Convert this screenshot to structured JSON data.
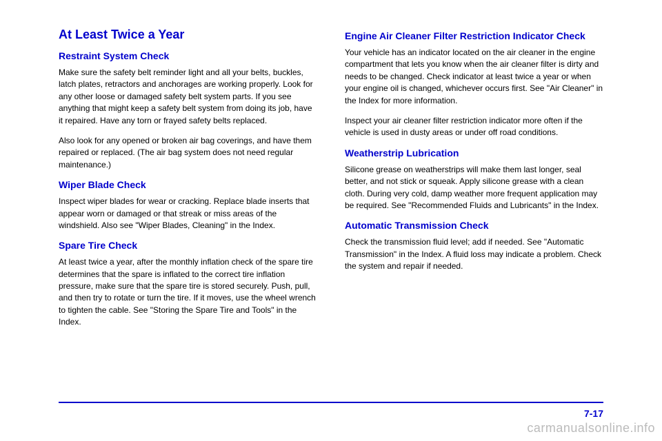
{
  "left": {
    "section_title": "At Least Twice a Year",
    "restraint": {
      "title": "Restraint System Check",
      "p1": "Make sure the safety belt reminder light and all your belts, buckles, latch plates, retractors and anchorages are working properly. Look for any other loose or damaged safety belt system parts. If you see anything that might keep a safety belt system from doing its job, have it repaired. Have any torn or frayed safety belts replaced.",
      "p2": "Also look for any opened or broken air bag coverings, and have them repaired or replaced. (The air bag system does not need regular maintenance.)"
    },
    "wiper": {
      "title": "Wiper Blade Check",
      "p1": "Inspect wiper blades for wear or cracking. Replace blade inserts that appear worn or damaged or that streak or miss areas of the windshield. Also see \"Wiper Blades, Cleaning\" in the Index."
    },
    "spare": {
      "title": "Spare Tire Check",
      "p1": "At least twice a year, after the monthly inflation check of the spare tire determines that the spare is inflated to the correct tire inflation pressure, make sure that the spare tire is stored securely. Push, pull, and then try to rotate or turn the tire. If it moves, use the wheel wrench to tighten the cable. See \"Storing the Spare Tire and Tools\" in the Index."
    }
  },
  "right": {
    "engine": {
      "title": "Engine Air Cleaner Filter Restriction Indicator Check",
      "p1": "Your vehicle has an indicator located on the air cleaner in the engine compartment that lets you know when the air cleaner filter is dirty and needs to be changed. Check indicator at least twice a year or when your engine oil is changed, whichever occurs first. See \"Air Cleaner\" in the Index for more information.",
      "p2": "Inspect your air cleaner filter restriction indicator more often if the vehicle is used in dusty areas or under off road conditions."
    },
    "weatherstrip": {
      "title": "Weatherstrip Lubrication",
      "p1": "Silicone grease on weatherstrips will make them last longer, seal better, and not stick or squeak. Apply silicone grease with a clean cloth. During very cold, damp weather more frequent application may be required. See \"Recommended Fluids and Lubricants\" in the Index."
    },
    "transmission": {
      "title": "Automatic Transmission Check",
      "p1": "Check the transmission fluid level; add if needed. See \"Automatic Transmission\" in the Index. A fluid loss may indicate a problem. Check the system and repair if needed."
    }
  },
  "page_number": "7-17",
  "watermark": "carmanualsonline.info"
}
